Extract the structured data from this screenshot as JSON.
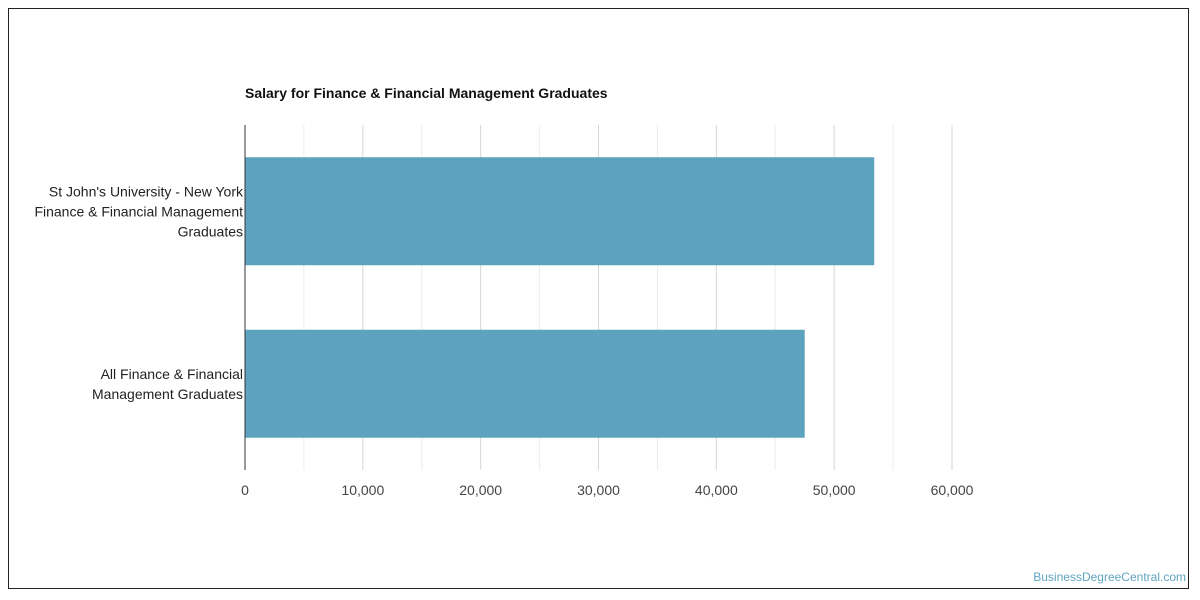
{
  "chart_data": {
    "type": "bar",
    "orientation": "horizontal",
    "title": "Salary for Finance & Financial Management Graduates",
    "categories": [
      [
        "St John's University - New York",
        "Finance & Financial Management",
        "Graduates"
      ],
      [
        "All Finance & Financial",
        "Management Graduates"
      ]
    ],
    "values": [
      53400,
      47500
    ],
    "xlim": [
      0,
      60000
    ],
    "ticks": [
      "0",
      "10,000",
      "20,000",
      "30,000",
      "40,000",
      "50,000",
      "60,000"
    ],
    "xlabel": "",
    "ylabel": "",
    "grid": true,
    "bar_color": "#5da2be"
  },
  "credit": "BusinessDegreeCentral.com"
}
